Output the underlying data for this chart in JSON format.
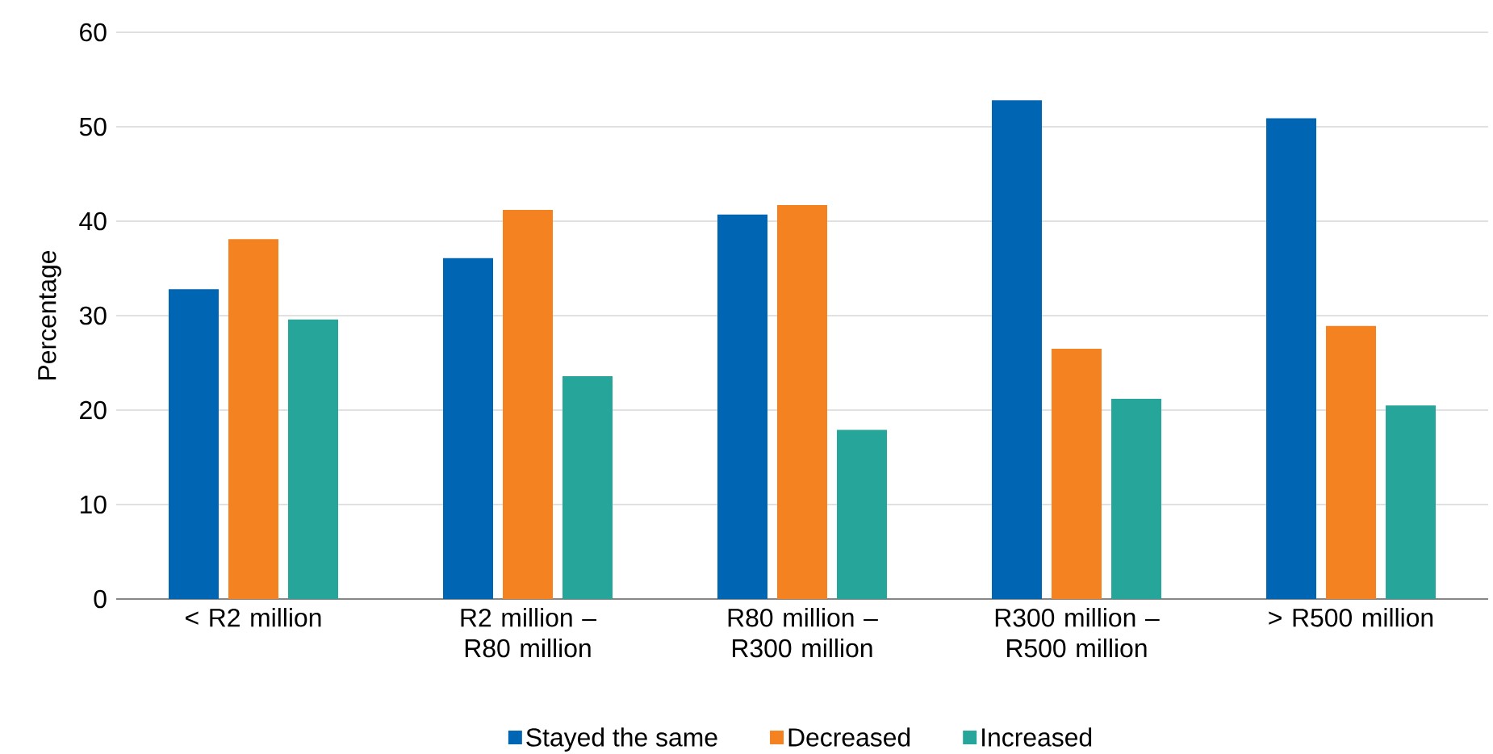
{
  "chart_data": {
    "type": "bar",
    "ylabel": "Percentage",
    "categories": [
      "< R2 million",
      "R2 million – R80 million",
      "R80 million – R300 million",
      "R300 million – R500 million",
      "> R500 million"
    ],
    "series": [
      {
        "name": "Stayed the same",
        "color": "#0065b3",
        "values": [
          32.8,
          36.1,
          40.7,
          52.8,
          50.9
        ]
      },
      {
        "name": "Decreased",
        "color": "#f58220",
        "values": [
          38.1,
          41.2,
          41.7,
          26.5,
          28.9
        ]
      },
      {
        "name": "Increased",
        "color": "#26a69a",
        "values": [
          29.6,
          23.6,
          17.9,
          21.2,
          20.5
        ]
      }
    ],
    "ylim": [
      0,
      60
    ],
    "yticks": [
      0,
      10,
      20,
      30,
      40,
      50,
      60
    ],
    "grid": "y",
    "legend": "bottom"
  }
}
